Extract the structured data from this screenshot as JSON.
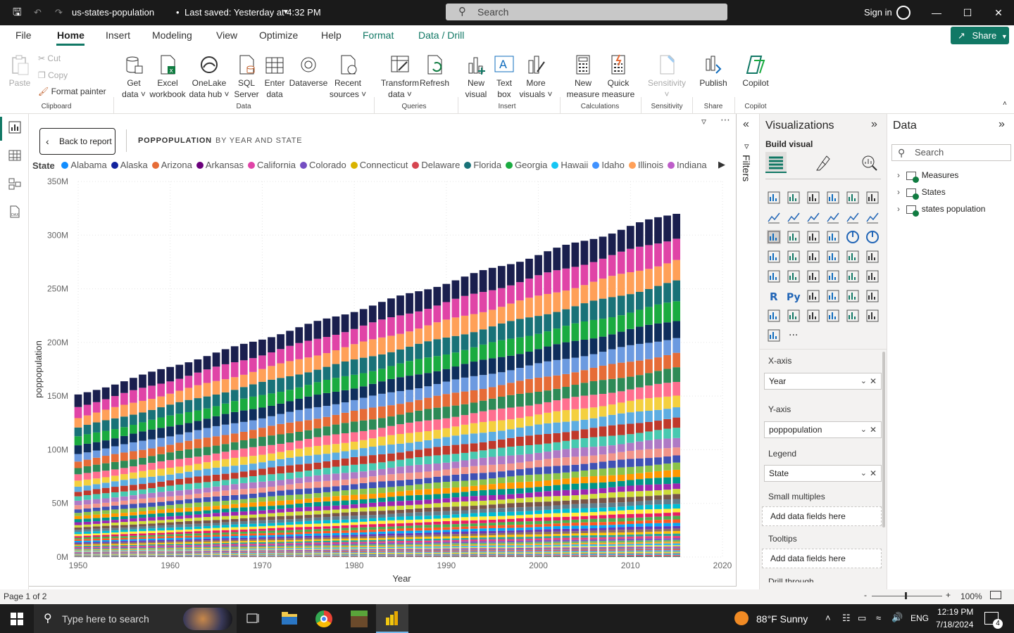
{
  "app": {
    "title": "us-states-population",
    "saved": "Last saved: Yesterday at 4:32 PM",
    "search_placeholder": "Search",
    "sign_in": "Sign in"
  },
  "menu": [
    "File",
    "Home",
    "Insert",
    "Modeling",
    "View",
    "Optimize",
    "Help",
    "Format",
    "Data / Drill"
  ],
  "share_label": "Share",
  "ribbon": {
    "clipboard": {
      "paste": "Paste",
      "cut": "Cut",
      "copy": "Copy",
      "format_painter": "Format painter",
      "group": "Clipboard"
    },
    "data": {
      "get_data": "Get",
      "get_data2": "data",
      "excel": "Excel",
      "excel2": "workbook",
      "onelake": "OneLake",
      "onelake2": "data hub",
      "sql": "SQL",
      "sql2": "Server",
      "enter": "Enter",
      "enter2": "data",
      "dataverse": "Dataverse",
      "recent": "Recent",
      "recent2": "sources",
      "group": "Data"
    },
    "queries": {
      "transform": "Transform",
      "transform2": "data",
      "refresh": "Refresh",
      "group": "Queries"
    },
    "insert": {
      "new_visual": "New",
      "new_visual2": "visual",
      "text_box": "Text",
      "text_box2": "box",
      "more": "More",
      "more2": "visuals",
      "group": "Insert"
    },
    "calculations": {
      "new_measure": "New",
      "new_measure2": "measure",
      "quick_measure": "Quick",
      "quick_measure2": "measure",
      "group": "Calculations"
    },
    "sensitivity": {
      "label": "Sensitivity",
      "group": "Sensitivity"
    },
    "share": {
      "publish": "Publish",
      "group": "Share"
    },
    "copilot": {
      "label": "Copilot",
      "group": "Copilot"
    }
  },
  "canvas": {
    "back": "Back to report",
    "crumb1": "POPPOPULATION",
    "crumb2": "BY YEAR AND STATE"
  },
  "chart_data": {
    "type": "bar",
    "stacked": true,
    "xlabel": "Year",
    "ylabel": "poppopulation",
    "legend_title": "State",
    "legend_placement": "top",
    "x_ticks": [
      "1950",
      "1960",
      "1970",
      "1980",
      "1990",
      "2000",
      "2010",
      "2020"
    ],
    "y_ticks": [
      "0M",
      "50M",
      "100M",
      "150M",
      "200M",
      "250M",
      "300M",
      "350M"
    ],
    "xlim": [
      1950,
      2020
    ],
    "ylim": [
      0,
      350
    ],
    "grid": true,
    "year_range": [
      1950,
      2015
    ],
    "total_start_M": 151,
    "total_end_M": 321,
    "series": [
      {
        "name": "Alabama",
        "color": "#118DFF"
      },
      {
        "name": "Alaska",
        "color": "#12239E"
      },
      {
        "name": "Arizona",
        "color": "#E66C37"
      },
      {
        "name": "Arkansas",
        "color": "#6B007B"
      },
      {
        "name": "California",
        "color": "#E044A7"
      },
      {
        "name": "Colorado",
        "color": "#744EC2"
      },
      {
        "name": "Connecticut",
        "color": "#D9B300"
      },
      {
        "name": "Delaware",
        "color": "#D64550"
      },
      {
        "name": "Florida",
        "color": "#197278"
      },
      {
        "name": "Georgia",
        "color": "#1AAB40"
      },
      {
        "name": "Hawaii",
        "color": "#15C6F4"
      },
      {
        "name": "Idaho",
        "color": "#4092FF"
      },
      {
        "name": "Illinois",
        "color": "#FFA058"
      },
      {
        "name": "Indiana",
        "color": "#BE5DC9"
      }
    ]
  },
  "filters_label": "Filters",
  "viz": {
    "title": "Visualizations",
    "build": "Build visual",
    "xaxis_label": "X-axis",
    "xaxis_value": "Year",
    "yaxis_label": "Y-axis",
    "yaxis_value": "poppopulation",
    "legend_label": "Legend",
    "legend_value": "State",
    "small_multiples": "Small multiples",
    "tooltips": "Tooltips",
    "drop_hint": "Add data fields here",
    "drill": "Drill through"
  },
  "data_pane": {
    "title": "Data",
    "search": "Search",
    "tables": [
      "Measures",
      "States",
      "states population"
    ]
  },
  "status": {
    "page": "Page 1 of 2",
    "zoom": "100%"
  },
  "taskbar": {
    "search": "Type here to search",
    "weather": "88°F  Sunny",
    "lang": "ENG",
    "time": "12:19 PM",
    "date": "7/18/2024",
    "notif": "4"
  }
}
